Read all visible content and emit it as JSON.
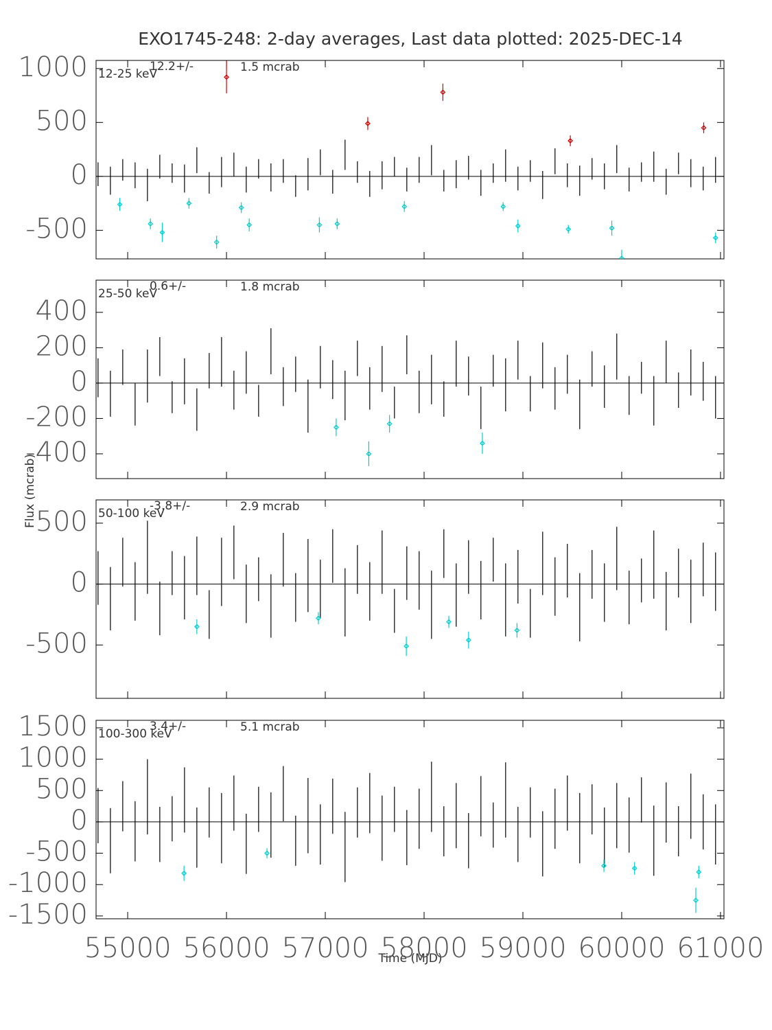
{
  "title": "EXO1745-248:  2-day averages,  Last data plotted: 2025-DEC-14",
  "xlabel": "Time (MJD)",
  "ylabel": "Flux (mcrab)",
  "chart_data": [
    {
      "type": "errorbar",
      "band": "12-25 keV",
      "mean": "12.2+/-",
      "error": "1.5 mcrab",
      "xlim": [
        54680,
        61035
      ],
      "xticks": [
        55000,
        56000,
        57000,
        58000,
        59000,
        60000,
        61000
      ],
      "ylim": [
        -765,
        1075
      ],
      "yticks": [
        -500,
        0,
        500,
        1000
      ],
      "series": [
        {
          "color": "#000000",
          "x": [
            54700,
            54825,
            54950,
            55075,
            55200,
            55325,
            55450,
            55575,
            55700,
            55825,
            55950,
            56075,
            56200,
            56325,
            56450,
            56575,
            56700,
            56825,
            56950,
            57075,
            57200,
            57325,
            57450,
            57575,
            57700,
            57825,
            57950,
            58075,
            58200,
            58325,
            58450,
            58575,
            58700,
            58825,
            58950,
            59075,
            59200,
            59325,
            59450,
            59575,
            59700,
            59825,
            59950,
            60075,
            60200,
            60325,
            60450,
            60575,
            60700,
            60825,
            60950
          ],
          "values": [
            20,
            -40,
            60,
            10,
            -80,
            90,
            30,
            -20,
            150,
            -60,
            40,
            110,
            -30,
            70,
            -10,
            50,
            -90,
            20,
            130,
            -50,
            200,
            40,
            -70,
            10,
            90,
            -30,
            60,
            150,
            -40,
            20,
            80,
            -60,
            30,
            100,
            -20,
            50,
            -80,
            140,
            10,
            -40,
            70,
            0,
            160,
            -30,
            40,
            90,
            -50,
            120,
            30,
            -20,
            60
          ],
          "errors": [
            110,
            130,
            100,
            120,
            150,
            110,
            90,
            130,
            120,
            100,
            140,
            110,
            120,
            90,
            130,
            110,
            100,
            150,
            120,
            110,
            140,
            100,
            120,
            130,
            90,
            110,
            120,
            140,
            100,
            130,
            110,
            120,
            90,
            150,
            110,
            100,
            130,
            120,
            110,
            140,
            100,
            120,
            130,
            110,
            90,
            140,
            120,
            100,
            130,
            110,
            120
          ]
        },
        {
          "color": "#d40000",
          "x": [
            56000,
            57430,
            58190,
            59480,
            60830
          ],
          "values": [
            920,
            490,
            780,
            330,
            450
          ],
          "errors": [
            150,
            60,
            80,
            50,
            50
          ]
        },
        {
          "color": "#00d0d0",
          "x": [
            54920,
            55230,
            55350,
            55620,
            55900,
            56150,
            56230,
            56940,
            57120,
            57800,
            58800,
            58950,
            59460,
            59900,
            60000,
            60950
          ],
          "values": [
            -260,
            -440,
            -520,
            -250,
            -610,
            -290,
            -450,
            -450,
            -440,
            -280,
            -280,
            -460,
            -490,
            -480,
            -760,
            -570
          ],
          "errors": [
            60,
            50,
            90,
            50,
            60,
            50,
            60,
            70,
            50,
            50,
            40,
            60,
            40,
            70,
            80,
            50
          ]
        }
      ]
    },
    {
      "type": "errorbar",
      "band": "25-50 keV",
      "mean": "0.6+/-",
      "error": "1.8 mcrab",
      "xlim": [
        54680,
        61035
      ],
      "xticks": [
        55000,
        56000,
        57000,
        58000,
        59000,
        60000,
        61000
      ],
      "ylim": [
        -540,
        582
      ],
      "yticks": [
        -400,
        -200,
        0,
        200,
        400
      ],
      "series": [
        {
          "color": "#000000",
          "x": [
            54700,
            54825,
            54950,
            55075,
            55200,
            55325,
            55450,
            55575,
            55700,
            55825,
            55950,
            56075,
            56200,
            56325,
            56450,
            56575,
            56700,
            56825,
            56950,
            57075,
            57200,
            57325,
            57450,
            57575,
            57700,
            57825,
            57950,
            58075,
            58200,
            58325,
            58450,
            58575,
            58700,
            58825,
            58950,
            59075,
            59200,
            59325,
            59450,
            59575,
            59700,
            59825,
            59950,
            60075,
            60200,
            60325,
            60450,
            60575,
            60700,
            60825,
            60950
          ],
          "values": [
            30,
            -60,
            90,
            -120,
            40,
            150,
            -80,
            10,
            -150,
            70,
            120,
            -40,
            60,
            -100,
            180,
            -20,
            50,
            -130,
            90,
            20,
            -70,
            140,
            -30,
            80,
            -110,
            160,
            -50,
            20,
            -90,
            110,
            40,
            -140,
            70,
            -10,
            130,
            -60,
            100,
            -30,
            50,
            -120,
            80,
            -20,
            150,
            -70,
            30,
            -100,
            120,
            -40,
            60,
            10,
            -80
          ],
          "errors": [
            110,
            130,
            100,
            120,
            150,
            110,
            90,
            130,
            120,
            100,
            140,
            110,
            120,
            90,
            130,
            110,
            100,
            150,
            120,
            110,
            140,
            100,
            120,
            130,
            90,
            110,
            120,
            140,
            100,
            130,
            110,
            120,
            90,
            150,
            110,
            100,
            130,
            120,
            110,
            140,
            100,
            120,
            130,
            110,
            90,
            140,
            120,
            100,
            130,
            110,
            120
          ]
        },
        {
          "color": "#00d0d0",
          "x": [
            57110,
            57440,
            57650,
            58590
          ],
          "values": [
            -250,
            -400,
            -230,
            -340
          ],
          "errors": [
            50,
            70,
            50,
            60
          ]
        }
      ]
    },
    {
      "type": "errorbar",
      "band": "50-100 keV",
      "mean": "-3.8+/-",
      "error": "2.9 mcrab",
      "xlim": [
        54680,
        61035
      ],
      "xticks": [
        55000,
        56000,
        57000,
        58000,
        59000,
        60000,
        61000
      ],
      "ylim": [
        -938,
        691
      ],
      "yticks": [
        -500,
        0,
        500
      ],
      "series": [
        {
          "color": "#000000",
          "x": [
            54700,
            54825,
            54950,
            55075,
            55200,
            55325,
            55450,
            55575,
            55700,
            55825,
            55950,
            56075,
            56200,
            56325,
            56450,
            56575,
            56700,
            56825,
            56950,
            57075,
            57200,
            57325,
            57450,
            57575,
            57700,
            57825,
            57950,
            58075,
            58200,
            58325,
            58450,
            58575,
            58700,
            58825,
            58950,
            59075,
            59200,
            59325,
            59450,
            59575,
            59700,
            59825,
            59950,
            60075,
            60200,
            60325,
            60450,
            60575,
            60700,
            60825,
            60950
          ],
          "values": [
            50,
            -120,
            180,
            -60,
            220,
            -200,
            90,
            -30,
            150,
            -250,
            100,
            260,
            -80,
            40,
            -180,
            200,
            -110,
            70,
            -40,
            230,
            -150,
            120,
            -60,
            180,
            -220,
            90,
            30,
            -170,
            250,
            -90,
            140,
            -50,
            200,
            -130,
            60,
            -240,
            170,
            -20,
            110,
            -190,
            80,
            -70,
            210,
            -110,
            30,
            160,
            -140,
            90,
            -60,
            120,
            20
          ],
          "errors": [
            220,
            260,
            200,
            240,
            300,
            220,
            180,
            260,
            240,
            200,
            280,
            220,
            240,
            180,
            260,
            220,
            200,
            300,
            240,
            220,
            280,
            200,
            240,
            260,
            180,
            220,
            240,
            280,
            200,
            260,
            220,
            240,
            180,
            300,
            220,
            200,
            260,
            240,
            220,
            280,
            200,
            240,
            260,
            220,
            180,
            280,
            240,
            200,
            260,
            220,
            240
          ]
        },
        {
          "color": "#00d0d0",
          "x": [
            55700,
            56930,
            57820,
            58250,
            58450,
            58940
          ],
          "values": [
            -350,
            -280,
            -510,
            -310,
            -460,
            -380
          ],
          "errors": [
            60,
            50,
            80,
            50,
            70,
            60
          ]
        }
      ]
    },
    {
      "type": "errorbar",
      "band": "100-300 keV",
      "mean": "3.4+/-",
      "error": "5.1 mcrab",
      "xlim": [
        54680,
        61035
      ],
      "xticks": [
        55000,
        56000,
        57000,
        58000,
        59000,
        60000,
        61000
      ],
      "ylim": [
        -1545,
        1620
      ],
      "yticks": [
        -1500,
        -1000,
        -500,
        0,
        500,
        1000,
        1500
      ],
      "series": [
        {
          "color": "#000000",
          "x": [
            54700,
            54825,
            54950,
            55075,
            55200,
            55325,
            55450,
            55575,
            55700,
            55825,
            55950,
            56075,
            56200,
            56325,
            56450,
            56575,
            56700,
            56825,
            56950,
            57075,
            57200,
            57325,
            57450,
            57575,
            57700,
            57825,
            57950,
            58075,
            58200,
            58325,
            58450,
            58575,
            58700,
            58825,
            58950,
            59075,
            59200,
            59325,
            59450,
            59575,
            59700,
            59825,
            59950,
            60075,
            60200,
            60325,
            60450,
            60575,
            60700,
            60825,
            60950
          ],
          "values": [
            100,
            -300,
            250,
            -150,
            400,
            -200,
            50,
            350,
            -250,
            150,
            -100,
            300,
            -350,
            200,
            -50,
            450,
            -300,
            100,
            -200,
            250,
            -400,
            150,
            300,
            -100,
            200,
            -250,
            50,
            400,
            -150,
            100,
            -300,
            250,
            -50,
            350,
            -200,
            150,
            -350,
            50,
            300,
            -100,
            200,
            -250,
            100,
            -50,
            350,
            -300,
            150,
            -150,
            250,
            0,
            -200
          ],
          "errors": [
            440,
            520,
            400,
            480,
            600,
            440,
            360,
            520,
            480,
            400,
            560,
            440,
            480,
            360,
            520,
            440,
            400,
            600,
            480,
            440,
            560,
            400,
            480,
            520,
            360,
            440,
            480,
            560,
            400,
            520,
            440,
            480,
            360,
            600,
            440,
            400,
            520,
            480,
            440,
            560,
            400,
            480,
            520,
            440,
            360,
            560,
            480,
            400,
            520,
            440,
            480
          ]
        },
        {
          "color": "#00d0d0",
          "x": [
            55570,
            56410,
            59820,
            60130,
            60750,
            60780
          ],
          "values": [
            -820,
            -500,
            -700,
            -740,
            -1250,
            -800
          ],
          "errors": [
            120,
            80,
            100,
            100,
            200,
            100
          ]
        }
      ]
    }
  ]
}
